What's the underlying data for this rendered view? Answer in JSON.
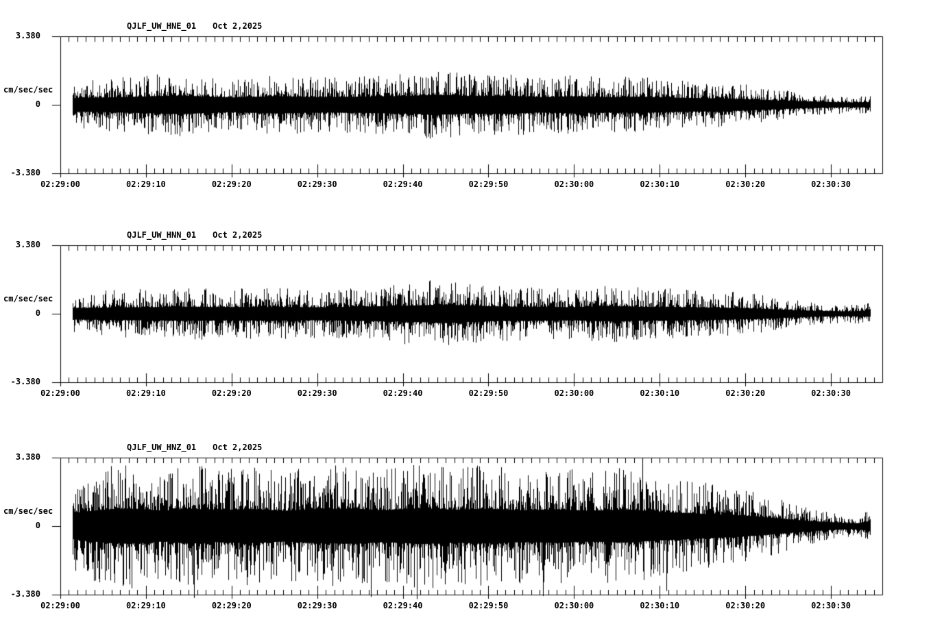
{
  "page": {
    "background": "#ffffff",
    "ink": "#000000"
  },
  "panels": [
    {
      "station": "QJLF_UW_HNE_01",
      "date": "Oct 2,2025",
      "y_max": "3.380",
      "y_zero": "0",
      "y_min": "-3.380",
      "unit": "cm/sec/sec"
    },
    {
      "station": "QJLF_UW_HNN_01",
      "date": "Oct 2,2025",
      "y_max": "3.380",
      "y_zero": "0",
      "y_min": "-3.380",
      "unit": "cm/sec/sec"
    },
    {
      "station": "QJLF_UW_HNZ_01",
      "date": "Oct 2,2025",
      "y_max": "3.380",
      "y_zero": "0",
      "y_min": "-3.380",
      "unit": "cm/sec/sec"
    }
  ],
  "time_axis": {
    "labels": [
      "02:29:00",
      "02:29:10",
      "02:29:20",
      "02:29:30",
      "02:29:40",
      "02:29:50",
      "02:30:00",
      "02:30:10",
      "02:30:20",
      "02:30:30"
    ],
    "label_interval_seconds": 10,
    "minor_tick_seconds": 1,
    "span_seconds": 96
  },
  "chart_data": [
    {
      "type": "line",
      "variant": "seismogram",
      "title": "QJLF_UW_HNE_01   Oct 2,2025",
      "station_channel": "QJLF_UW_HNE_01",
      "date_label": "Oct 2,2025",
      "ylabel": "cm/sec/sec",
      "ylim": [
        -3.38,
        3.38
      ],
      "ytick_labels": [
        "3.380",
        "0",
        "-3.380"
      ],
      "x_tick_labels": [
        "02:29:00",
        "02:29:10",
        "02:29:20",
        "02:29:30",
        "02:29:40",
        "02:29:50",
        "02:30:00",
        "02:30:10",
        "02:30:20",
        "02:30:30"
      ],
      "x_span_seconds": 96,
      "grid": false,
      "legend": "none",
      "trace": {
        "seed": 11,
        "start_s": 1.4,
        "end_s": 94.6,
        "core_ratio": 0.28,
        "envelope_t": [
          1.4,
          5,
          14,
          20,
          25,
          30,
          35,
          40,
          44,
          48,
          52,
          56,
          60,
          64,
          68,
          72,
          76,
          80,
          84,
          88,
          92,
          94.6
        ],
        "envelope_a": [
          1.18,
          1.28,
          1.62,
          1.28,
          1.52,
          1.35,
          1.42,
          1.52,
          1.76,
          1.52,
          1.62,
          1.35,
          1.49,
          1.35,
          1.42,
          1.22,
          1.15,
          1.01,
          0.74,
          0.54,
          0.41,
          0.47
        ],
        "spikes": []
      }
    },
    {
      "type": "line",
      "variant": "seismogram",
      "title": "QJLF_UW_HNN_01   Oct 2,2025",
      "station_channel": "QJLF_UW_HNN_01",
      "date_label": "Oct 2,2025",
      "ylabel": "cm/sec/sec",
      "ylim": [
        -3.38,
        3.38
      ],
      "ytick_labels": [
        "3.380",
        "0",
        "-3.380"
      ],
      "x_tick_labels": [
        "02:29:00",
        "02:29:10",
        "02:29:20",
        "02:29:30",
        "02:29:40",
        "02:29:50",
        "02:30:00",
        "02:30:10",
        "02:30:20",
        "02:30:30"
      ],
      "x_span_seconds": 96,
      "grid": false,
      "legend": "none",
      "trace": {
        "seed": 22,
        "start_s": 1.4,
        "end_s": 94.6,
        "core_ratio": 0.26,
        "envelope_t": [
          1.4,
          5,
          10,
          15,
          20,
          25,
          30,
          35,
          40,
          45,
          48,
          52,
          56,
          60,
          64,
          68,
          72,
          76,
          80,
          84,
          88,
          92,
          94.6
        ],
        "envelope_a": [
          1.1,
          1.15,
          1.25,
          1.3,
          1.25,
          1.3,
          1.2,
          1.35,
          1.5,
          1.75,
          1.5,
          1.35,
          1.3,
          1.25,
          1.45,
          1.3,
          1.25,
          1.15,
          1.05,
          0.8,
          0.55,
          0.45,
          0.55
        ],
        "spikes": []
      }
    },
    {
      "type": "line",
      "variant": "seismogram",
      "title": "QJLF_UW_HNZ_01   Oct 2,2025",
      "station_channel": "QJLF_UW_HNZ_01",
      "date_label": "Oct 2,2025",
      "ylabel": "cm/sec/sec",
      "ylim": [
        -3.38,
        3.38
      ],
      "ytick_labels": [
        "3.380",
        "0",
        "-3.380"
      ],
      "x_tick_labels": [
        "02:29:00",
        "02:29:10",
        "02:29:20",
        "02:29:30",
        "02:29:40",
        "02:29:50",
        "02:30:00",
        "02:30:10",
        "02:30:20",
        "02:30:30"
      ],
      "x_span_seconds": 96,
      "grid": false,
      "legend": "none",
      "trace": {
        "seed": 33,
        "start_s": 1.4,
        "end_s": 94.6,
        "core_ratio": 0.28,
        "envelope_t": [
          1.4,
          5,
          8,
          12,
          15,
          18,
          22,
          26,
          30,
          34,
          38,
          42,
          46,
          50,
          54,
          58,
          62,
          66,
          70,
          73,
          76,
          79,
          82,
          85,
          88,
          91,
          93,
          94.6
        ],
        "envelope_a": [
          2.3,
          2.9,
          3.1,
          2.7,
          3.1,
          2.8,
          3.0,
          2.7,
          3.0,
          3.1,
          2.8,
          3.15,
          2.9,
          3.05,
          2.8,
          2.95,
          2.7,
          2.9,
          2.5,
          2.3,
          2.1,
          1.9,
          1.6,
          1.2,
          0.85,
          0.6,
          0.5,
          0.9
        ],
        "spikes": [
          {
            "t": 15.6,
            "v": -3.55
          },
          {
            "t": 36.3,
            "v": -3.5
          },
          {
            "t": 41.6,
            "v": -3.6
          },
          {
            "t": 56.4,
            "v": -3.45
          },
          {
            "t": 68.0,
            "v": 3.35
          },
          {
            "t": 70.8,
            "v": -3.2
          }
        ]
      }
    }
  ]
}
